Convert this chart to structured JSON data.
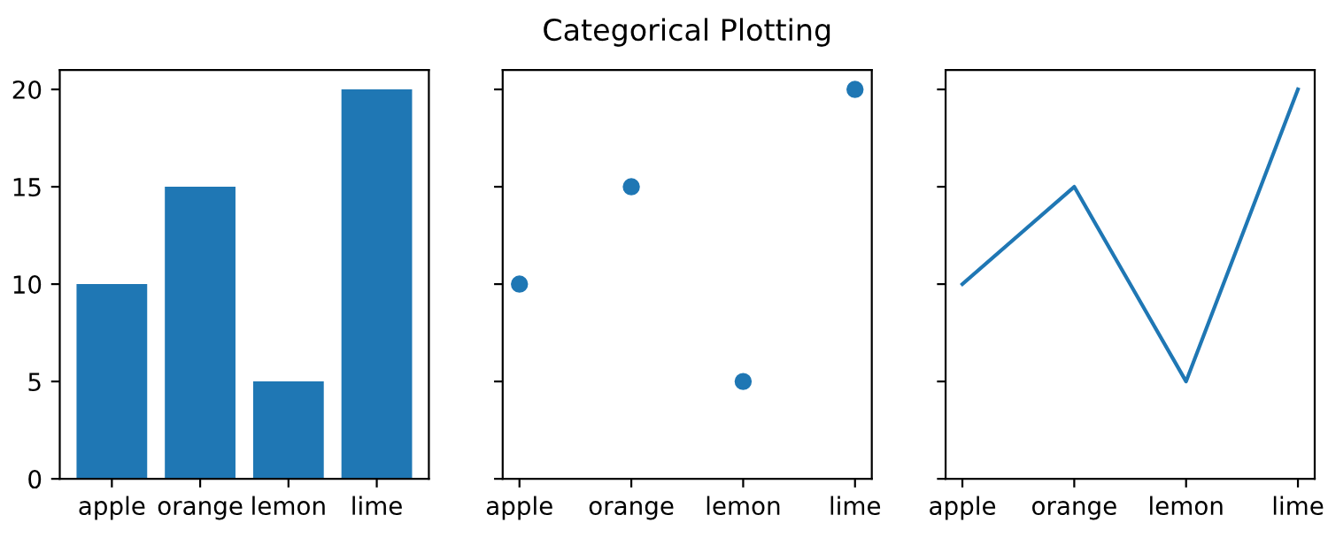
{
  "chart_data": [
    {
      "type": "bar",
      "categories": [
        "apple",
        "orange",
        "lemon",
        "lime"
      ],
      "values": [
        10,
        15,
        5,
        20
      ],
      "color": "#1f77b4",
      "ylim": [
        0,
        21
      ],
      "yticks": [
        0,
        5,
        10,
        15,
        20
      ],
      "grid": false
    },
    {
      "type": "scatter",
      "title": "Categorical Plotting",
      "categories": [
        "apple",
        "orange",
        "lemon",
        "lime"
      ],
      "values": [
        10,
        15,
        5,
        20
      ],
      "color": "#1f77b4",
      "marker": "circle",
      "ylim": [
        0,
        21
      ],
      "yticks": [
        0,
        5,
        10,
        15,
        20
      ],
      "tick_labels": "x",
      "grid": false
    },
    {
      "type": "line",
      "categories": [
        "apple",
        "orange",
        "lemon",
        "lime"
      ],
      "values": [
        10,
        15,
        5,
        20
      ],
      "color": "#1f77b4",
      "line_style": "solid",
      "ylim": [
        0,
        21
      ],
      "yticks": [
        0,
        5,
        10,
        15,
        20
      ],
      "tick_labels": "x",
      "grid": false
    }
  ]
}
